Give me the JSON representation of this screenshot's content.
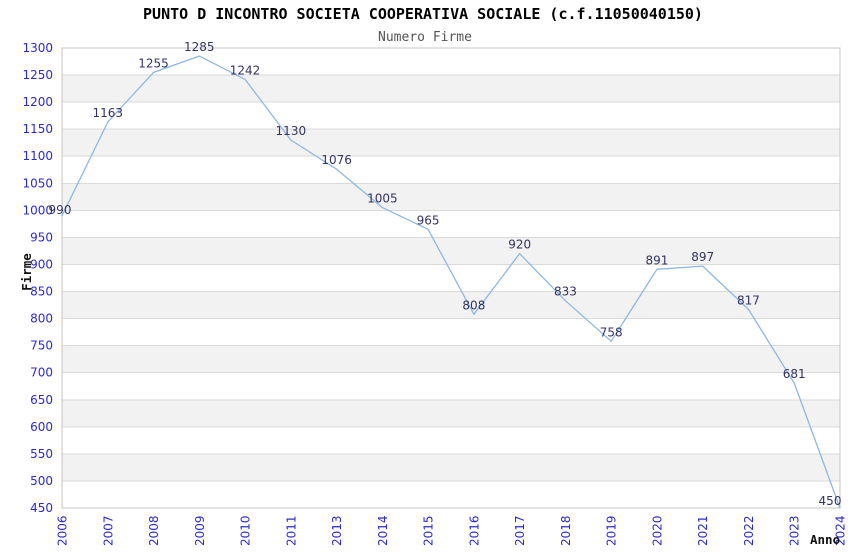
{
  "chart_data": {
    "type": "line",
    "title": "PUNTO D INCONTRO SOCIETA COOPERATIVA SOCIALE (c.f.11050040150)",
    "subtitle": "Numero Firme",
    "xlabel": "Anno",
    "ylabel": "Firme",
    "categories": [
      "2006",
      "2007",
      "2008",
      "2009",
      "2010",
      "2011",
      "2013",
      "2014",
      "2015",
      "2016",
      "2017",
      "2018",
      "2019",
      "2020",
      "2021",
      "2022",
      "2023",
      "2024"
    ],
    "values": [
      990,
      1163,
      1255,
      1285,
      1242,
      1130,
      1076,
      1005,
      965,
      808,
      920,
      833,
      758,
      891,
      897,
      817,
      681,
      450
    ],
    "ylim": [
      450,
      1300
    ],
    "ytick_step": 50,
    "grid": "horizontal",
    "banded_background": true,
    "legend": "none",
    "data_labels": true
  },
  "colors": {
    "line": "#8cb8e8",
    "tick_label": "#2b2bd0",
    "data_label": "#333366",
    "title": "#000000",
    "subtitle": "#555555",
    "band_fill": "#f2f2f2",
    "grid_line": "#dadada",
    "plot_border": "#c4c4c4",
    "background": "#ffffff"
  }
}
